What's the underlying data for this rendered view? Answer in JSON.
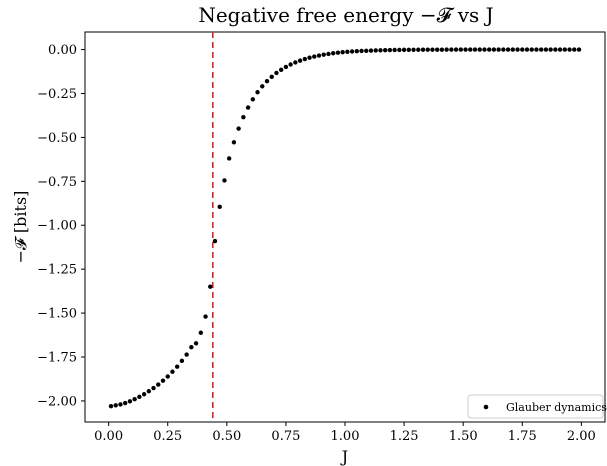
{
  "chart_data": {
    "type": "scatter",
    "title": "Negative free energy −𝓕 vs J",
    "xlabel": "J",
    "ylabel": "−𝓕 [bits]",
    "xlim": [
      -0.1,
      2.1
    ],
    "ylim": [
      -2.12,
      0.1
    ],
    "xticks": [
      0.0,
      0.25,
      0.5,
      0.75,
      1.0,
      1.25,
      1.5,
      1.75,
      2.0
    ],
    "xtick_labels": [
      "0.00",
      "0.25",
      "0.50",
      "0.75",
      "1.00",
      "1.25",
      "1.50",
      "1.75",
      "2.00"
    ],
    "yticks": [
      0.0,
      -0.25,
      -0.5,
      -0.75,
      -1.0,
      -1.25,
      -1.5,
      -1.75,
      -2.0
    ],
    "ytick_labels": [
      "0.00",
      "−0.25",
      "−0.50",
      "−0.75",
      "−1.00",
      "−1.25",
      "−1.50",
      "−1.75",
      "−2.00"
    ],
    "grid": false,
    "legend_position": "lower-right",
    "series": [
      {
        "name": "Glauber dynamics",
        "color": "#000000",
        "x": [
          0.01,
          0.03,
          0.05,
          0.07,
          0.09,
          0.11,
          0.13,
          0.15,
          0.17,
          0.19,
          0.21,
          0.23,
          0.25,
          0.27,
          0.29,
          0.31,
          0.33,
          0.35,
          0.37,
          0.39,
          0.41,
          0.43,
          0.45,
          0.47,
          0.49,
          0.51,
          0.53,
          0.55,
          0.57,
          0.59,
          0.61,
          0.63,
          0.65,
          0.67,
          0.69,
          0.71,
          0.73,
          0.75,
          0.77,
          0.79,
          0.81,
          0.83,
          0.85,
          0.87,
          0.89,
          0.91,
          0.93,
          0.95,
          0.97,
          0.99,
          1.01,
          1.03,
          1.05,
          1.07,
          1.09,
          1.11,
          1.13,
          1.15,
          1.17,
          1.19,
          1.21,
          1.23,
          1.25,
          1.27,
          1.29,
          1.31,
          1.33,
          1.35,
          1.37,
          1.39,
          1.41,
          1.43,
          1.45,
          1.47,
          1.49,
          1.51,
          1.53,
          1.55,
          1.57,
          1.59,
          1.61,
          1.63,
          1.65,
          1.67,
          1.69,
          1.71,
          1.73,
          1.75,
          1.77,
          1.79,
          1.81,
          1.83,
          1.85,
          1.87,
          1.89,
          1.91,
          1.93,
          1.95,
          1.97,
          1.99
        ],
        "y": [
          -2.03,
          -2.025,
          -2.02,
          -2.012,
          -2.002,
          -1.99,
          -1.977,
          -1.962,
          -1.945,
          -1.927,
          -1.907,
          -1.885,
          -1.861,
          -1.834,
          -1.805,
          -1.772,
          -1.736,
          -1.694,
          -1.672,
          -1.612,
          -1.52,
          -1.35,
          -1.09,
          -0.895,
          -0.745,
          -0.62,
          -0.528,
          -0.45,
          -0.385,
          -0.33,
          -0.283,
          -0.243,
          -0.209,
          -0.18,
          -0.155,
          -0.133,
          -0.115,
          -0.099,
          -0.085,
          -0.073,
          -0.063,
          -0.054,
          -0.046,
          -0.04,
          -0.034,
          -0.029,
          -0.025,
          -0.021,
          -0.018,
          -0.015,
          -0.013,
          -0.011,
          -0.009,
          -0.008,
          -0.007,
          -0.006,
          -0.005,
          -0.004,
          -0.0035,
          -0.003,
          -0.0025,
          -0.002,
          -0.0017,
          -0.0014,
          -0.0012,
          -0.001,
          -0.0008,
          -0.0007,
          -0.0006,
          -0.0005,
          -0.0004,
          -0.0003,
          -0.0003,
          -0.0002,
          -0.0002,
          -0.0002,
          -0.0001,
          -0.0001,
          -0.0001,
          -0.0001,
          -0.0001,
          0,
          0,
          0,
          0,
          0,
          0,
          0,
          0,
          0,
          0,
          0,
          0,
          0,
          0,
          0,
          0,
          0,
          0,
          0
        ]
      }
    ],
    "reference_lines": [
      {
        "orientation": "vertical",
        "x": 0.4407,
        "color": "#d62728",
        "style": "dashed"
      }
    ]
  }
}
